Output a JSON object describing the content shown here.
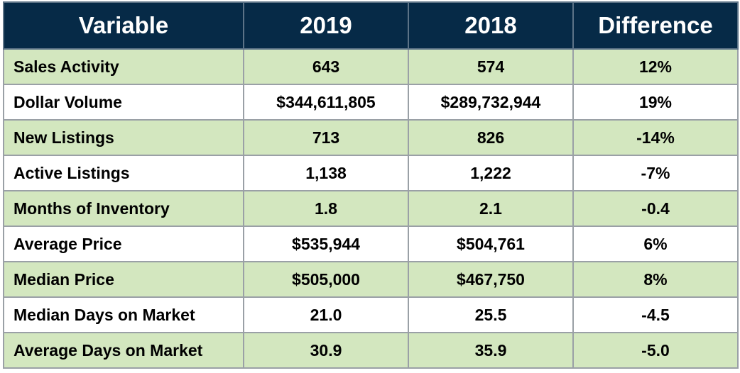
{
  "header": {
    "col_variable": "Variable",
    "col_2019": "2019",
    "col_2018": "2018",
    "col_difference": "Difference"
  },
  "rows": [
    {
      "variable": "Sales Activity",
      "y2019": "643",
      "y2018": "574",
      "difference": "12%"
    },
    {
      "variable": "Dollar Volume",
      "y2019": "$344,611,805",
      "y2018": "$289,732,944",
      "difference": "19%"
    },
    {
      "variable": "New Listings",
      "y2019": "713",
      "y2018": "826",
      "difference": "-14%"
    },
    {
      "variable": "Active Listings",
      "y2019": "1,138",
      "y2018": "1,222",
      "difference": "-7%"
    },
    {
      "variable": "Months of Inventory",
      "y2019": "1.8",
      "y2018": "2.1",
      "difference": "-0.4"
    },
    {
      "variable": "Average Price",
      "y2019": "$535,944",
      "y2018": "$504,761",
      "difference": "6%"
    },
    {
      "variable": "Median Price",
      "y2019": "$505,000",
      "y2018": "$467,750",
      "difference": "8%"
    },
    {
      "variable": "Median Days on Market",
      "y2019": "21.0",
      "y2018": "25.5",
      "difference": "-4.5"
    },
    {
      "variable": "Average Days on Market",
      "y2019": "30.9",
      "y2018": "35.9",
      "difference": "-5.0"
    }
  ],
  "colors": {
    "header_bg": "#062a47",
    "header_text": "#ffffff",
    "shaded_row_bg": "#d3e7bf",
    "plain_row_bg": "#ffffff",
    "grid": "#9aa0a6"
  }
}
